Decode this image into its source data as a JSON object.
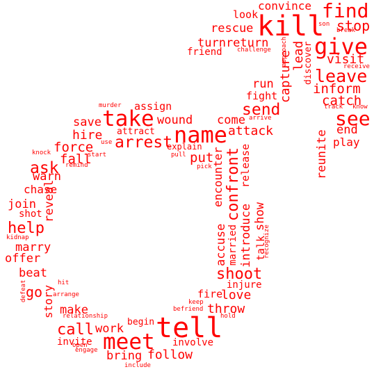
{
  "colors": {
    "text": "#ff0000",
    "background": "#ffffff"
  },
  "words": [
    {
      "id": "kill",
      "text": "kill"
    },
    {
      "id": "convince",
      "text": "convince"
    },
    {
      "id": "find",
      "text": "find"
    },
    {
      "id": "look",
      "text": "look"
    },
    {
      "id": "stop",
      "text": "stop"
    },
    {
      "id": "son",
      "text": "son"
    },
    {
      "id": "break",
      "text": "break"
    },
    {
      "id": "rescue",
      "text": "rescue"
    },
    {
      "id": "give",
      "text": "give"
    },
    {
      "id": "turnreturn",
      "text": "turnreturn"
    },
    {
      "id": "friend",
      "text": "friend"
    },
    {
      "id": "challenge",
      "text": "challenge"
    },
    {
      "id": "approach",
      "text": "approach"
    },
    {
      "id": "visit",
      "text": "visit"
    },
    {
      "id": "receive",
      "text": "receive"
    },
    {
      "id": "lead",
      "text": "lead"
    },
    {
      "id": "discover",
      "text": "discover"
    },
    {
      "id": "leave",
      "text": "leave"
    },
    {
      "id": "inform",
      "text": "inform"
    },
    {
      "id": "capture",
      "text": "capture"
    },
    {
      "id": "run",
      "text": "run"
    },
    {
      "id": "fight",
      "text": "fight"
    },
    {
      "id": "catch",
      "text": "catch"
    },
    {
      "id": "send",
      "text": "send"
    },
    {
      "id": "track",
      "text": "track"
    },
    {
      "id": "know",
      "text": "know"
    },
    {
      "id": "see",
      "text": "see"
    },
    {
      "id": "murder",
      "text": "murder"
    },
    {
      "id": "assign",
      "text": "assign"
    },
    {
      "id": "arrive",
      "text": "arrive"
    },
    {
      "id": "take",
      "text": "take"
    },
    {
      "id": "wound",
      "text": "wound"
    },
    {
      "id": "come",
      "text": "come"
    },
    {
      "id": "end",
      "text": "end"
    },
    {
      "id": "save",
      "text": "save"
    },
    {
      "id": "attract",
      "text": "attract"
    },
    {
      "id": "name",
      "text": "name"
    },
    {
      "id": "attack",
      "text": "attack"
    },
    {
      "id": "reunite",
      "text": "reunite"
    },
    {
      "id": "play",
      "text": "play"
    },
    {
      "id": "hire",
      "text": "hire"
    },
    {
      "id": "use",
      "text": "use"
    },
    {
      "id": "arrest",
      "text": "arrest"
    },
    {
      "id": "explain",
      "text": "explain"
    },
    {
      "id": "force",
      "text": "force"
    },
    {
      "id": "start",
      "text": "start"
    },
    {
      "id": "pull",
      "text": "pull"
    },
    {
      "id": "put",
      "text": "put"
    },
    {
      "id": "knock",
      "text": "knock"
    },
    {
      "id": "fall",
      "text": "fall"
    },
    {
      "id": "remind",
      "text": "remind"
    },
    {
      "id": "pick",
      "text": "pick"
    },
    {
      "id": "ask",
      "text": "ask"
    },
    {
      "id": "confront",
      "text": "confront"
    },
    {
      "id": "release",
      "text": "release"
    },
    {
      "id": "encounter",
      "text": "encounter"
    },
    {
      "id": "warn",
      "text": "warn"
    },
    {
      "id": "chase",
      "text": "chase"
    },
    {
      "id": "reveal",
      "text": "reveal"
    },
    {
      "id": "join",
      "text": "join"
    },
    {
      "id": "show",
      "text": "show"
    },
    {
      "id": "shot",
      "text": "shot"
    },
    {
      "id": "introduce",
      "text": "introduce"
    },
    {
      "id": "help",
      "text": "help"
    },
    {
      "id": "recognize",
      "text": "recognize"
    },
    {
      "id": "kidnap",
      "text": "kidnap"
    },
    {
      "id": "talk",
      "text": "talk"
    },
    {
      "id": "accuse",
      "text": "accuse"
    },
    {
      "id": "married",
      "text": "married"
    },
    {
      "id": "marry",
      "text": "marry"
    },
    {
      "id": "offer",
      "text": "offer"
    },
    {
      "id": "beat",
      "text": "beat"
    },
    {
      "id": "shoot",
      "text": "shoot"
    },
    {
      "id": "injure",
      "text": "injure"
    },
    {
      "id": "hit",
      "text": "hit"
    },
    {
      "id": "go",
      "text": "go"
    },
    {
      "id": "defeat",
      "text": "defeat"
    },
    {
      "id": "love",
      "text": "love"
    },
    {
      "id": "story",
      "text": "story"
    },
    {
      "id": "arrange",
      "text": "arrange"
    },
    {
      "id": "fire",
      "text": "fire"
    },
    {
      "id": "keep",
      "text": "keep"
    },
    {
      "id": "befriend",
      "text": "befriend"
    },
    {
      "id": "throw",
      "text": "throw"
    },
    {
      "id": "make",
      "text": "make"
    },
    {
      "id": "hold",
      "text": "hold"
    },
    {
      "id": "relationship",
      "text": "relationship"
    },
    {
      "id": "begin",
      "text": "begin"
    },
    {
      "id": "tell",
      "text": "tell"
    },
    {
      "id": "call",
      "text": "call"
    },
    {
      "id": "work",
      "text": "work"
    },
    {
      "id": "meet",
      "text": "meet"
    },
    {
      "id": "invite",
      "text": "invite"
    },
    {
      "id": "involve",
      "text": "involve"
    },
    {
      "id": "open",
      "text": "open"
    },
    {
      "id": "engage",
      "text": "engage"
    },
    {
      "id": "bring",
      "text": "bring"
    },
    {
      "id": "follow",
      "text": "follow"
    },
    {
      "id": "include",
      "text": "include"
    }
  ]
}
